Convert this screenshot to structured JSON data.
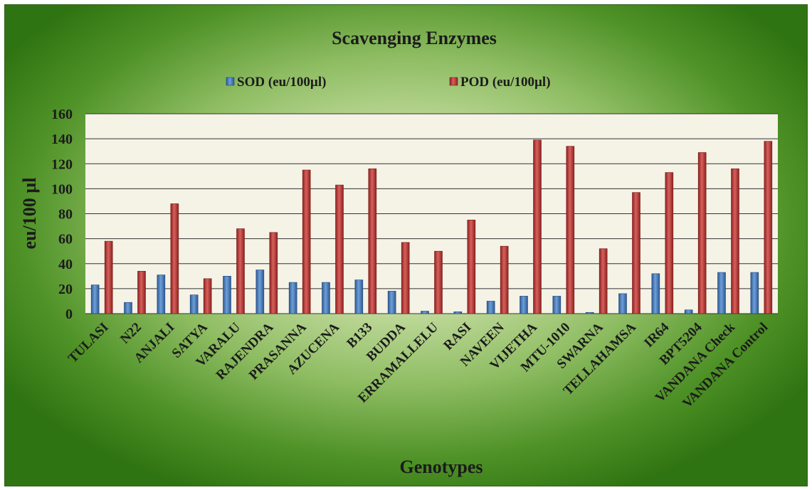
{
  "chart_data": {
    "type": "bar",
    "title": "Scavenging Enzymes",
    "xlabel": "Genotypes",
    "ylabel": "eu/100 µl",
    "ylim": [
      0,
      160
    ],
    "yticks": [
      0,
      20,
      40,
      60,
      80,
      100,
      120,
      140,
      160
    ],
    "grid": true,
    "legend_position": "top",
    "categories": [
      "TULASI",
      "N22",
      "ANJALI",
      "SATYA",
      "VARALU",
      "RAJENDRA",
      "PRASANNA",
      "AZUCENA",
      "B133",
      "BUDDA",
      "ERRAMALLELU",
      "RASI",
      "NAVEEN",
      "VIJETHA",
      "MTU-1010",
      "SWARNA",
      "TELLAHAMSA",
      "IR64",
      "BPT5204",
      "VANDANA Check",
      "VANDANA Control"
    ],
    "series": [
      {
        "name": "SOD (eu/100µl)",
        "color": "#4f81bd",
        "values": [
          23,
          9,
          31,
          15,
          30,
          35,
          25,
          25,
          27,
          18,
          2,
          1.5,
          10,
          14,
          14,
          1,
          16,
          32,
          3,
          33,
          33
        ]
      },
      {
        "name": "POD (eu/100µl)",
        "color": "#c0504d",
        "values": [
          58,
          34,
          88,
          28,
          68,
          65,
          115,
          103,
          116,
          57,
          50,
          75,
          54,
          139,
          134,
          52,
          97,
          113,
          129,
          116,
          138
        ]
      }
    ]
  },
  "colors": {
    "plot_bg": "#f5f3e6",
    "gridline": "#333333"
  }
}
